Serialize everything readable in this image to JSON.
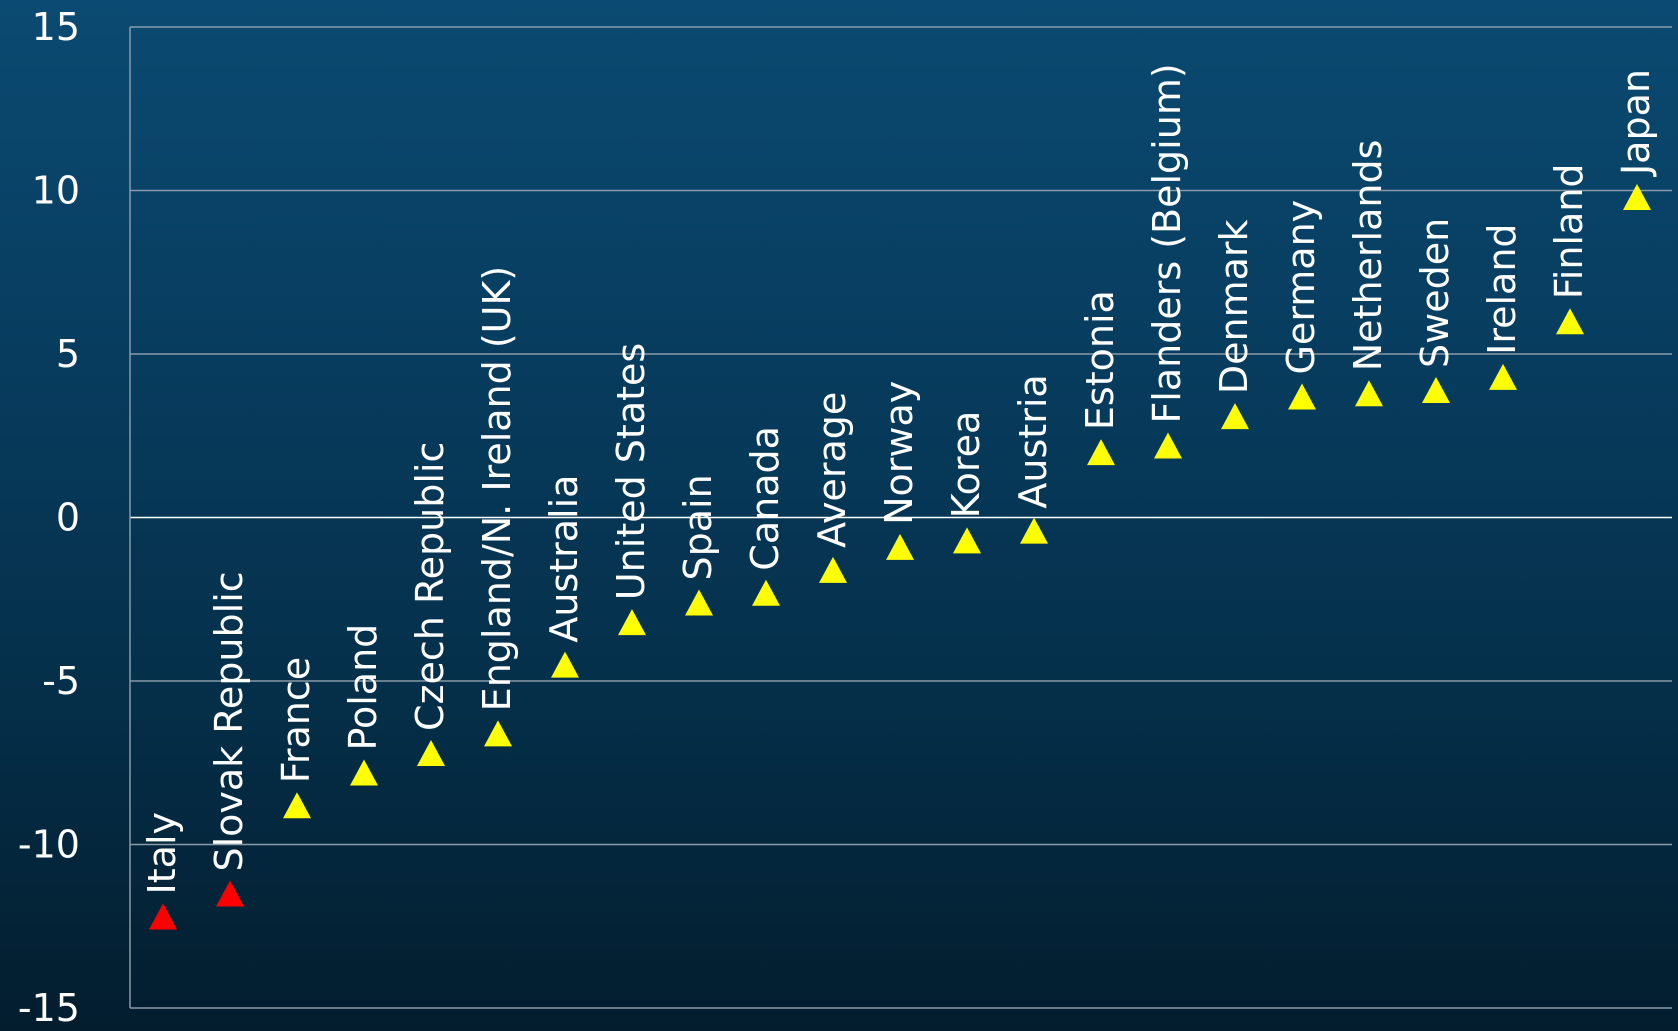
{
  "chart_data": {
    "type": "scatter",
    "title": "",
    "xlabel": "",
    "ylabel": "",
    "ylim": [
      -15,
      15
    ],
    "yticks": [
      "15",
      "10",
      "5",
      "0",
      "-5",
      "-10",
      "-15"
    ],
    "grid": true,
    "legend": "none",
    "marker": "triangle",
    "colors": {
      "highlight": "#ff0000",
      "default": "#ffff00",
      "text": "#ffffff",
      "grid": "#8a9aa8"
    },
    "categories": [
      "Italy",
      "Slovak Republic",
      "France",
      "Poland",
      "Czech Republic",
      "England/N. Ireland (UK)",
      "Australia",
      "United States",
      "Spain",
      "Canada",
      "Average",
      "Norway",
      "Korea",
      "Austria",
      "Estonia",
      "Flanders (Belgium)",
      "Denmark",
      "Germany",
      "Netherlands",
      "Sweden",
      "Ireland",
      "Finland",
      "Japan"
    ],
    "values": [
      -12.2,
      -11.5,
      -8.8,
      -7.8,
      -7.2,
      -6.6,
      -4.5,
      -3.2,
      -2.6,
      -2.3,
      -1.6,
      -0.9,
      -0.7,
      -0.4,
      2.0,
      2.2,
      3.1,
      3.7,
      3.8,
      3.9,
      4.3,
      6.0,
      9.8
    ],
    "point_colors": [
      "#ff0000",
      "#ff0000",
      "#ffff00",
      "#ffff00",
      "#ffff00",
      "#ffff00",
      "#ffff00",
      "#ffff00",
      "#ffff00",
      "#ffff00",
      "#ffff00",
      "#ffff00",
      "#ffff00",
      "#ffff00",
      "#ffff00",
      "#ffff00",
      "#ffff00",
      "#ffff00",
      "#ffff00",
      "#ffff00",
      "#ffff00",
      "#ffff00",
      "#ffff00"
    ]
  }
}
